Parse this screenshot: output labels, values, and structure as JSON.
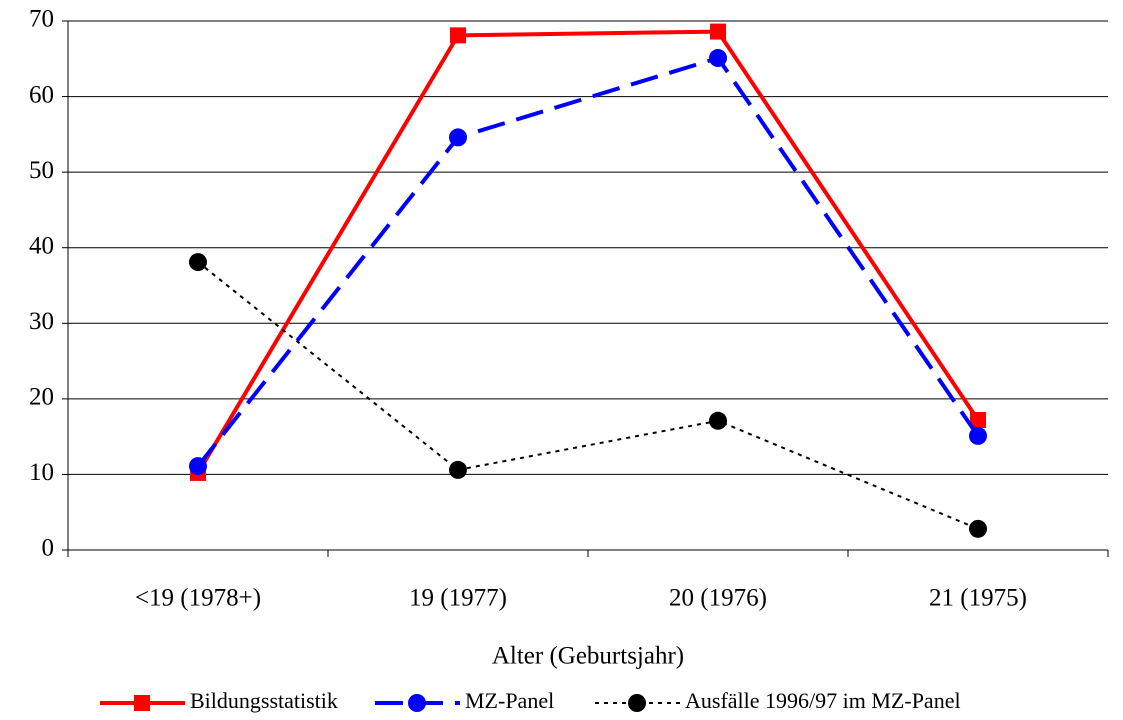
{
  "chart_data": {
    "type": "line",
    "x_label": "Alter (Geburtsjahr)",
    "categories": [
      "<19 (1978+)",
      "19 (1977)",
      "20 (1976)",
      "21 (1975)"
    ],
    "series": [
      {
        "name": "Bildungsstatistik",
        "color": "#ff0000",
        "marker": "square",
        "line_style": "solid",
        "values": [
          10.2,
          68.1,
          68.6,
          17.2
        ]
      },
      {
        "name": "MZ-Panel",
        "color": "#0000ff",
        "marker": "circle",
        "line_style": "dashed",
        "values": [
          11.1,
          54.6,
          65.1,
          15.1
        ]
      },
      {
        "name": "Ausfälle 1996/97 im MZ-Panel",
        "color": "#000000",
        "marker": "circle",
        "line_style": "dotted",
        "values": [
          38.1,
          10.6,
          17.1,
          2.8
        ]
      }
    ],
    "ylim": [
      0,
      70
    ],
    "yticks": [
      0,
      10,
      20,
      30,
      40,
      50,
      60,
      70
    ],
    "grid": true,
    "legend": "bottom"
  }
}
